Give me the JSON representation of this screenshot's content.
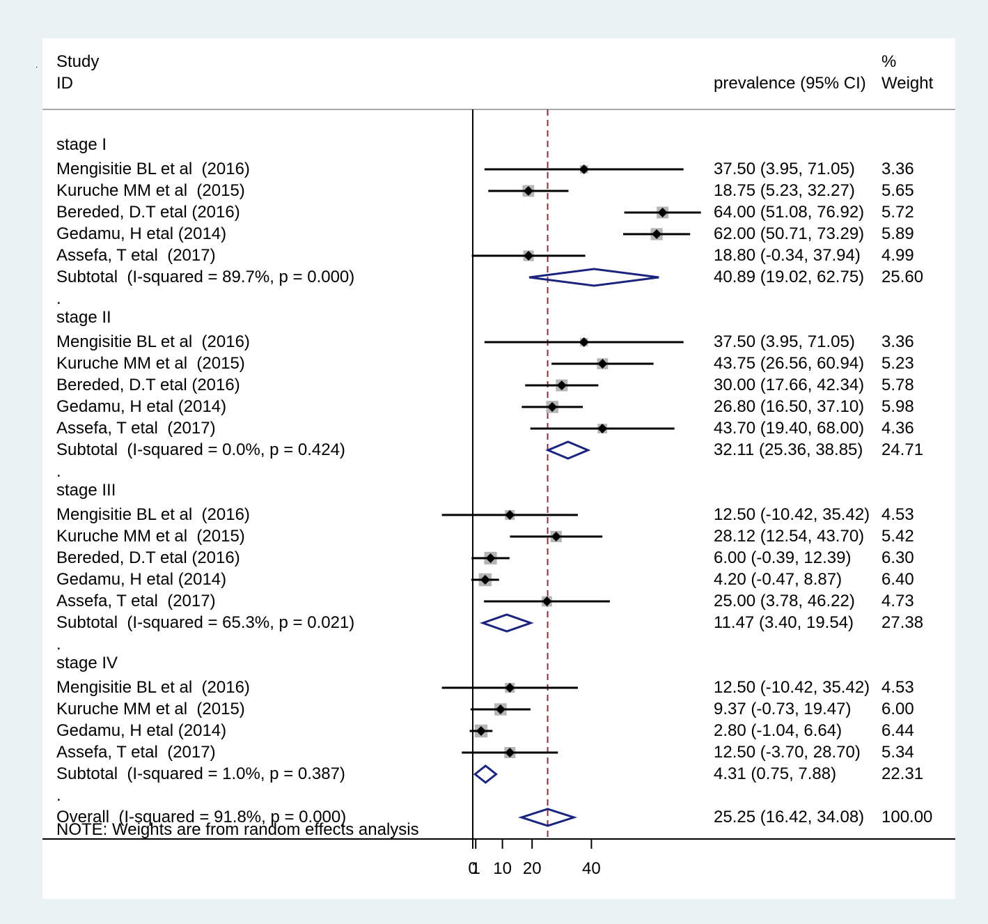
{
  "header": {
    "study_label": "Study",
    "id_label": "ID",
    "ci_label": "prevalence (95% CI)",
    "pct_label": "%",
    "weight_label": "Weight"
  },
  "note": "NOTE: Weights are from random effects analysis",
  "spacer_dot": ".",
  "colors": {
    "background": "#eaf2f3",
    "panel": "#ffffff",
    "diamond": "#1a237e",
    "reference_line": "#8b2d3a",
    "weight_box": "#b5b5b5",
    "text": "#000000"
  },
  "chart_data": {
    "type": "forest",
    "x_axis": {
      "ticks": [
        0,
        1,
        10,
        20,
        40
      ],
      "tick_labels": [
        "0",
        "1",
        "10",
        "20",
        "40"
      ],
      "range": [
        0,
        100
      ]
    },
    "reference_line": 25.25,
    "null_line": 0,
    "rows": [
      {
        "kind": "group",
        "label": "stage I"
      },
      {
        "kind": "study",
        "label": "Mengisitie BL et al  (2016)",
        "est": 37.5,
        "lo": 3.95,
        "hi": 71.05,
        "ci_text": "37.50 (3.95, 71.05)",
        "weight_text": "3.36",
        "weight": 3.36
      },
      {
        "kind": "study",
        "label": "Kuruche MM et al  (2015)",
        "est": 18.75,
        "lo": 5.23,
        "hi": 32.27,
        "ci_text": "18.75 (5.23, 32.27)",
        "weight_text": "5.65",
        "weight": 5.65
      },
      {
        "kind": "study",
        "label": "Bereded, D.T etal (2016)",
        "est": 64.0,
        "lo": 51.08,
        "hi": 76.92,
        "ci_text": "64.00 (51.08, 76.92)",
        "weight_text": "5.72",
        "weight": 5.72
      },
      {
        "kind": "study",
        "label": "Gedamu, H etal (2014)",
        "est": 62.0,
        "lo": 50.71,
        "hi": 73.29,
        "ci_text": "62.00 (50.71, 73.29)",
        "weight_text": "5.89",
        "weight": 5.89
      },
      {
        "kind": "study",
        "label": "Assefa, T etal  (2017)",
        "est": 18.8,
        "lo": -0.34,
        "hi": 37.94,
        "ci_text": "18.80 (-0.34, 37.94)",
        "weight_text": "4.99",
        "weight": 4.99
      },
      {
        "kind": "subtotal",
        "label": "Subtotal  (I-squared = 89.7%, p = 0.000)",
        "est": 40.89,
        "lo": 19.02,
        "hi": 62.75,
        "ci_text": "40.89 (19.02, 62.75)",
        "weight_text": "25.60"
      },
      {
        "kind": "spacer"
      },
      {
        "kind": "group",
        "label": "stage II"
      },
      {
        "kind": "study",
        "label": "Mengisitie BL et al  (2016)",
        "est": 37.5,
        "lo": 3.95,
        "hi": 71.05,
        "ci_text": "37.50 (3.95, 71.05)",
        "weight_text": "3.36",
        "weight": 3.36
      },
      {
        "kind": "study",
        "label": "Kuruche MM et al  (2015)",
        "est": 43.75,
        "lo": 26.56,
        "hi": 60.94,
        "ci_text": "43.75 (26.56, 60.94)",
        "weight_text": "5.23",
        "weight": 5.23
      },
      {
        "kind": "study",
        "label": "Bereded, D.T etal (2016)",
        "est": 30.0,
        "lo": 17.66,
        "hi": 42.34,
        "ci_text": "30.00 (17.66, 42.34)",
        "weight_text": "5.78",
        "weight": 5.78
      },
      {
        "kind": "study",
        "label": "Gedamu, H etal (2014)",
        "est": 26.8,
        "lo": 16.5,
        "hi": 37.1,
        "ci_text": "26.80 (16.50, 37.10)",
        "weight_text": "5.98",
        "weight": 5.98
      },
      {
        "kind": "study",
        "label": "Assefa, T etal  (2017)",
        "est": 43.7,
        "lo": 19.4,
        "hi": 68.0,
        "ci_text": "43.70 (19.40, 68.00)",
        "weight_text": "4.36",
        "weight": 4.36
      },
      {
        "kind": "subtotal",
        "label": "Subtotal  (I-squared = 0.0%, p = 0.424)",
        "est": 32.11,
        "lo": 25.36,
        "hi": 38.85,
        "ci_text": "32.11 (25.36, 38.85)",
        "weight_text": "24.71"
      },
      {
        "kind": "spacer"
      },
      {
        "kind": "group",
        "label": "stage III"
      },
      {
        "kind": "study",
        "label": "Mengisitie BL et al  (2016)",
        "est": 12.5,
        "lo": -10.42,
        "hi": 35.42,
        "ci_text": "12.50 (-10.42, 35.42)",
        "weight_text": "4.53",
        "weight": 4.53
      },
      {
        "kind": "study",
        "label": "Kuruche MM et al  (2015)",
        "est": 28.12,
        "lo": 12.54,
        "hi": 43.7,
        "ci_text": "28.12 (12.54, 43.70)",
        "weight_text": "5.42",
        "weight": 5.42
      },
      {
        "kind": "study",
        "label": "Bereded, D.T etal (2016)",
        "est": 6.0,
        "lo": -0.39,
        "hi": 12.39,
        "ci_text": "6.00 (-0.39, 12.39)",
        "weight_text": "6.30",
        "weight": 6.3
      },
      {
        "kind": "study",
        "label": "Gedamu, H etal (2014)",
        "est": 4.2,
        "lo": -0.47,
        "hi": 8.87,
        "ci_text": "4.20 (-0.47, 8.87)",
        "weight_text": "6.40",
        "weight": 6.4
      },
      {
        "kind": "study",
        "label": "Assefa, T etal  (2017)",
        "est": 25.0,
        "lo": 3.78,
        "hi": 46.22,
        "ci_text": "25.00 (3.78, 46.22)",
        "weight_text": "4.73",
        "weight": 4.73
      },
      {
        "kind": "subtotal",
        "label": "Subtotal  (I-squared = 65.3%, p = 0.021)",
        "est": 11.47,
        "lo": 3.4,
        "hi": 19.54,
        "ci_text": "11.47 (3.40, 19.54)",
        "weight_text": "27.38"
      },
      {
        "kind": "spacer"
      },
      {
        "kind": "group",
        "label": "stage IV"
      },
      {
        "kind": "study",
        "label": "Mengisitie BL et al  (2016)",
        "est": 12.5,
        "lo": -10.42,
        "hi": 35.42,
        "ci_text": "12.50 (-10.42, 35.42)",
        "weight_text": "4.53",
        "weight": 4.53
      },
      {
        "kind": "study",
        "label": "Kuruche MM et al  (2015)",
        "est": 9.37,
        "lo": -0.73,
        "hi": 19.47,
        "ci_text": "9.37 (-0.73, 19.47)",
        "weight_text": "6.00",
        "weight": 6.0
      },
      {
        "kind": "study",
        "label": "Gedamu, H etal (2014)",
        "est": 2.8,
        "lo": -1.04,
        "hi": 6.64,
        "ci_text": "2.80 (-1.04, 6.64)",
        "weight_text": "6.44",
        "weight": 6.44
      },
      {
        "kind": "study",
        "label": "Assefa, T etal  (2017)",
        "est": 12.5,
        "lo": -3.7,
        "hi": 28.7,
        "ci_text": "12.50 (-3.70, 28.70)",
        "weight_text": "5.34",
        "weight": 5.34
      },
      {
        "kind": "subtotal",
        "label": "Subtotal  (I-squared = 1.0%, p = 0.387)",
        "est": 4.31,
        "lo": 0.75,
        "hi": 7.88,
        "ci_text": "4.31 (0.75, 7.88)",
        "weight_text": "22.31"
      },
      {
        "kind": "spacer"
      },
      {
        "kind": "overall",
        "label": "Overall  (I-squared = 91.8%, p = 0.000)",
        "est": 25.25,
        "lo": 16.42,
        "hi": 34.08,
        "ci_text": "25.25 (16.42, 34.08)",
        "weight_text": "100.00"
      }
    ]
  }
}
